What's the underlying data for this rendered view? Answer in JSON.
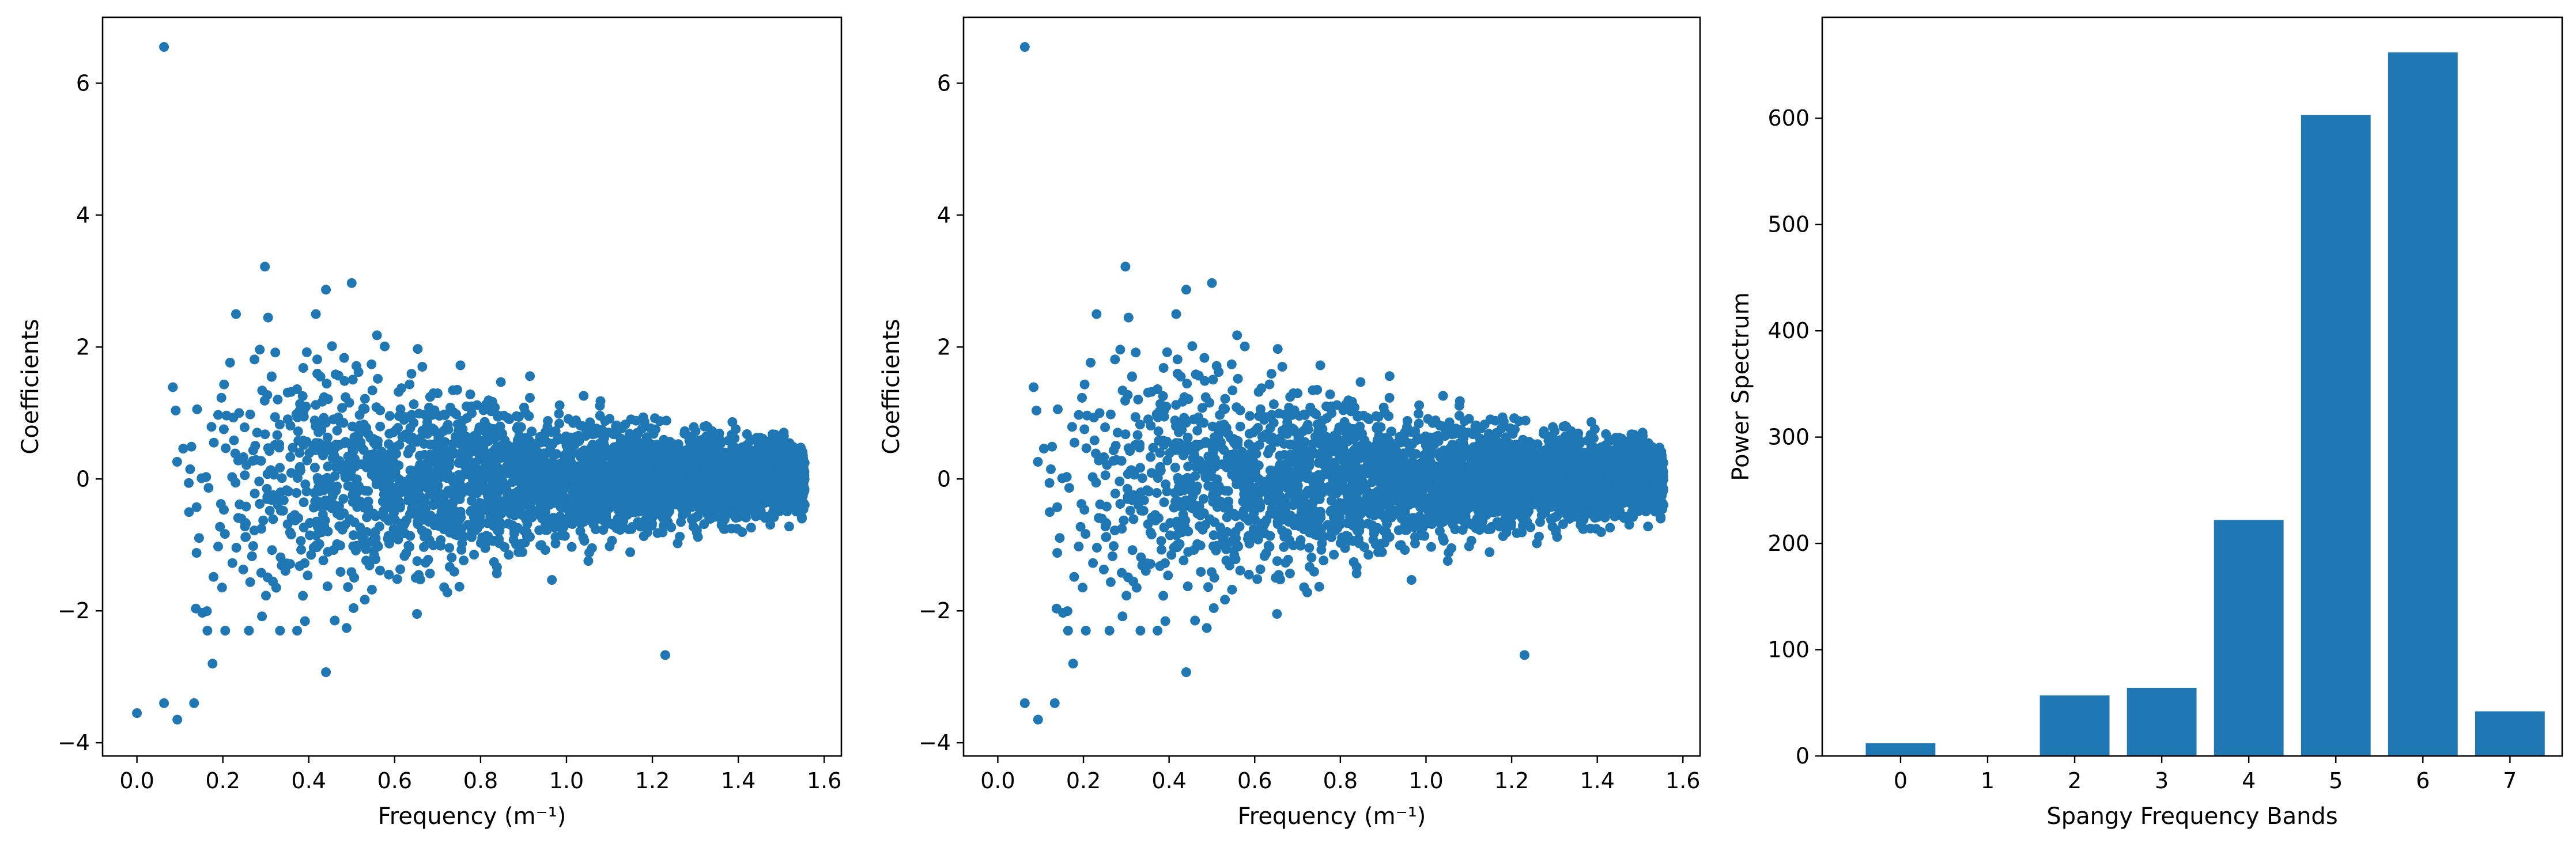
{
  "colors": {
    "marker": "#1f77b4",
    "bar": "#1f77b4",
    "axis": "#000000",
    "background": "#ffffff"
  },
  "chart_data": [
    {
      "type": "scatter",
      "xlabel": "Frequency (m⁻¹)",
      "ylabel": "Coefficients",
      "xlim": [
        -0.08,
        1.64
      ],
      "ylim": [
        -4.2,
        7.0
      ],
      "xticks": [
        "0.0",
        "0.2",
        "0.4",
        "0.6",
        "0.8",
        "1.0",
        "1.2",
        "1.4",
        "1.6"
      ],
      "yticks": [
        "−4",
        "−2",
        "0",
        "2",
        "4",
        "6"
      ],
      "grid": false,
      "outliers": [
        {
          "x": 0.063,
          "y": 6.55
        },
        {
          "x": 0.298,
          "y": 3.22
        },
        {
          "x": 0.0,
          "y": -3.55
        },
        {
          "x": 0.063,
          "y": -3.4
        },
        {
          "x": 0.094,
          "y": -3.65
        },
        {
          "x": 0.133,
          "y": -3.4
        },
        {
          "x": 0.176,
          "y": -2.8
        },
        {
          "x": 1.23,
          "y": -2.67
        },
        {
          "x": 0.5,
          "y": 2.97
        },
        {
          "x": 0.44,
          "y": 2.87
        },
        {
          "x": 0.44,
          "y": -2.93
        }
      ],
      "point_cloud": {
        "n": 3600,
        "x_range": [
          0.06,
          1.555
        ],
        "spread_std_by_x": [
          [
            0.1,
            1.15
          ],
          [
            0.3,
            1.0
          ],
          [
            0.5,
            0.8
          ],
          [
            0.8,
            0.55
          ],
          [
            1.1,
            0.38
          ],
          [
            1.4,
            0.28
          ],
          [
            1.555,
            0.24
          ]
        ]
      }
    },
    {
      "type": "scatter",
      "xlabel": "Frequency (m⁻¹)",
      "ylabel": "Coefficients",
      "xlim": [
        -0.08,
        1.64
      ],
      "ylim": [
        -4.2,
        7.0
      ],
      "xticks": [
        "0.0",
        "0.2",
        "0.4",
        "0.6",
        "0.8",
        "1.0",
        "1.2",
        "1.4",
        "1.6"
      ],
      "yticks": [
        "−4",
        "−2",
        "0",
        "2",
        "4",
        "6"
      ],
      "grid": false,
      "outliers": [
        {
          "x": 0.063,
          "y": 6.55
        },
        {
          "x": 0.298,
          "y": 3.22
        },
        {
          "x": 0.063,
          "y": -3.4
        },
        {
          "x": 0.094,
          "y": -3.65
        },
        {
          "x": 0.133,
          "y": -3.4
        },
        {
          "x": 0.176,
          "y": -2.8
        },
        {
          "x": 1.23,
          "y": -2.67
        },
        {
          "x": 0.5,
          "y": 2.97
        },
        {
          "x": 0.44,
          "y": 2.87
        },
        {
          "x": 0.44,
          "y": -2.93
        }
      ],
      "point_cloud": {
        "n": 3600,
        "x_range": [
          0.06,
          1.555
        ],
        "spread_std_by_x": [
          [
            0.1,
            1.15
          ],
          [
            0.3,
            1.0
          ],
          [
            0.5,
            0.8
          ],
          [
            0.8,
            0.55
          ],
          [
            1.1,
            0.38
          ],
          [
            1.4,
            0.28
          ],
          [
            1.555,
            0.24
          ]
        ]
      }
    },
    {
      "type": "bar",
      "categories": [
        "0",
        "1",
        "2",
        "3",
        "4",
        "5",
        "6",
        "7"
      ],
      "values": [
        12,
        0,
        57,
        64,
        222,
        603,
        662,
        42
      ],
      "xlabel": "Spangy Frequency Bands",
      "ylabel": "Power Spectrum",
      "ylim": [
        0,
        695
      ],
      "xlim": [
        -0.9,
        7.6
      ],
      "yticks": [
        "0",
        "100",
        "200",
        "300",
        "400",
        "500",
        "600"
      ],
      "grid": false
    }
  ]
}
